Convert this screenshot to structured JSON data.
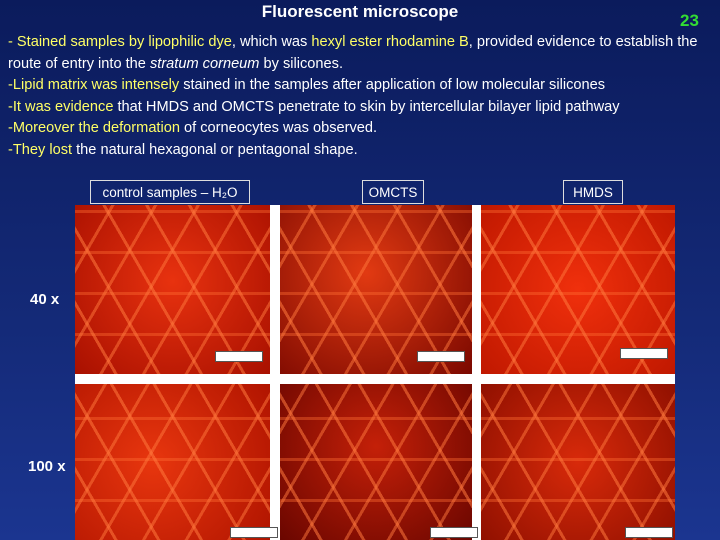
{
  "header": {
    "title": "Fluorescent microscope",
    "page_number": "23"
  },
  "bullets": [
    [
      {
        "text": "- Stained samples by lipophilic dye",
        "color": "#ffff66"
      },
      {
        "text": ", which was ",
        "color": "#ffffff"
      },
      {
        "text": "hexyl ester rhodamine B",
        "color": "#ffff66"
      },
      {
        "text": ", provided evidence to establish the route of entry into the ",
        "color": "#ffffff"
      },
      {
        "text": "stratum corneum",
        "color": "#ffffff",
        "italic": true
      },
      {
        "text": " by silicones.",
        "color": "#ffffff"
      }
    ],
    [
      {
        "text": "-Lipid matrix was intensely",
        "color": "#ffff66"
      },
      {
        "text": " stained in the samples after application of low molecular silicones",
        "color": "#ffffff"
      }
    ],
    [
      {
        "text": "-It was evidence",
        "color": "#ffff66"
      },
      {
        "text": " that HMDS and OMCTS penetrate to skin by intercellular bilayer lipid pathway",
        "color": "#ffffff"
      }
    ],
    [
      {
        "text": "-Moreover the deformation",
        "color": "#ffff66"
      },
      {
        "text": " of corneocytes was observed.",
        "color": "#ffffff"
      }
    ],
    [
      {
        "text": "-They lost",
        "color": "#ffff66"
      },
      {
        "text": " the natural hexagonal or pentagonal shape.",
        "color": "#ffffff"
      }
    ]
  ],
  "columns": [
    "control samples – H₂O",
    "OMCTS",
    "HMDS"
  ],
  "rows": [
    "40 x",
    "100 x"
  ]
}
